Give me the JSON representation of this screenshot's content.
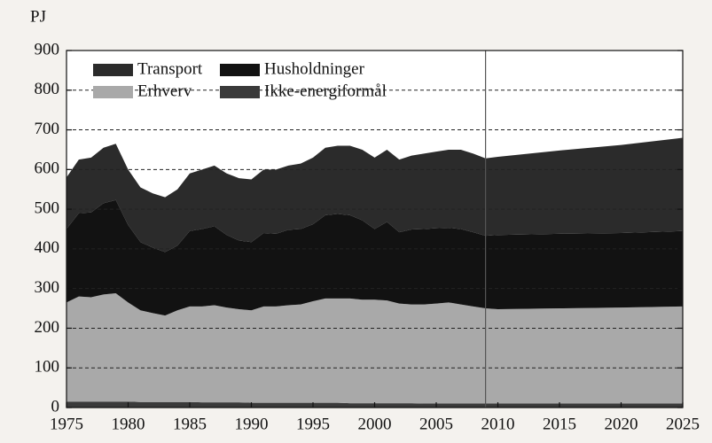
{
  "chart_data": {
    "type": "stacked_area",
    "y_label": "PJ",
    "x": [
      1975,
      1976,
      1977,
      1978,
      1979,
      1980,
      1981,
      1982,
      1983,
      1984,
      1985,
      1986,
      1987,
      1988,
      1989,
      1990,
      1991,
      1992,
      1993,
      1994,
      1995,
      1996,
      1997,
      1998,
      1999,
      2000,
      2001,
      2002,
      2003,
      2004,
      2005,
      2006,
      2007,
      2008,
      2009,
      2010,
      2015,
      2020,
      2025
    ],
    "series": [
      {
        "name": "Ikke-energiformål",
        "color": "#3a3a3a",
        "values": [
          15,
          15,
          15,
          15,
          15,
          15,
          14,
          14,
          14,
          14,
          14,
          13,
          13,
          13,
          13,
          12,
          12,
          12,
          12,
          12,
          12,
          12,
          12,
          11,
          11,
          11,
          11,
          11,
          11,
          10,
          10,
          10,
          10,
          10,
          10,
          10,
          10,
          10,
          10
        ]
      },
      {
        "name": "Erhverv",
        "color": "#a9a9a9",
        "values": [
          250,
          265,
          263,
          270,
          273,
          250,
          231,
          224,
          218,
          231,
          241,
          242,
          245,
          239,
          235,
          233,
          243,
          243,
          246,
          248,
          256,
          263,
          263,
          264,
          261,
          261,
          259,
          251,
          249,
          250,
          252,
          255,
          250,
          245,
          240,
          238,
          240,
          242,
          245
        ]
      },
      {
        "name": "Husholdninger",
        "color": "#121212",
        "values": [
          185,
          210,
          214,
          230,
          235,
          195,
          172,
          165,
          160,
          163,
          190,
          195,
          199,
          183,
          173,
          172,
          185,
          183,
          190,
          190,
          194,
          210,
          213,
          210,
          200,
          178,
          198,
          180,
          189,
          190,
          190,
          188,
          190,
          187,
          183,
          187,
          188,
          188,
          190
        ]
      },
      {
        "name": "Transport",
        "color": "#2b2b2b",
        "values": [
          130,
          135,
          138,
          140,
          142,
          140,
          138,
          137,
          138,
          142,
          145,
          150,
          153,
          155,
          157,
          158,
          160,
          162,
          162,
          165,
          168,
          170,
          172,
          175,
          178,
          180,
          182,
          183,
          186,
          190,
          193,
          197,
          200,
          198,
          195,
          197,
          210,
          222,
          235
        ]
      }
    ],
    "xlim": [
      1975,
      2025
    ],
    "xticks": [
      1975,
      1980,
      1985,
      1990,
      1995,
      2000,
      2005,
      2010,
      2015,
      2020,
      2025
    ],
    "ylim": [
      0,
      900
    ],
    "yticks": [
      0,
      100,
      200,
      300,
      400,
      500,
      600,
      700,
      800,
      900
    ],
    "grid": true,
    "legend": "upper left",
    "vline": 2009
  }
}
